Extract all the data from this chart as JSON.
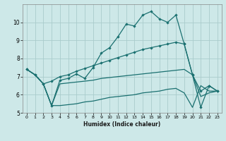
{
  "xlabel": "Humidex (Indice chaleur)",
  "background_color": "#cde8e8",
  "grid_color": "#aacccc",
  "line_color": "#1a7070",
  "xlim": [
    -0.5,
    23.5
  ],
  "ylim": [
    5,
    11
  ],
  "xticks": [
    0,
    1,
    2,
    3,
    4,
    5,
    6,
    7,
    8,
    9,
    10,
    11,
    12,
    13,
    14,
    15,
    16,
    17,
    18,
    19,
    20,
    21,
    22,
    23
  ],
  "yticks": [
    5,
    6,
    7,
    8,
    9,
    10
  ],
  "line1_x": [
    0,
    1,
    2,
    3,
    4,
    5,
    6,
    7,
    8,
    9,
    10,
    11,
    12,
    13,
    14,
    15,
    16,
    17,
    18,
    19,
    20,
    21,
    22,
    23
  ],
  "line1_y": [
    7.4,
    7.1,
    6.6,
    5.4,
    6.8,
    6.9,
    7.15,
    6.9,
    7.5,
    8.3,
    8.6,
    9.2,
    9.9,
    9.8,
    10.4,
    10.6,
    10.2,
    10.0,
    10.4,
    8.8,
    7.1,
    5.3,
    6.5,
    6.2
  ],
  "line2_x": [
    0,
    1,
    2,
    3,
    4,
    5,
    6,
    7,
    8,
    9,
    10,
    11,
    12,
    13,
    14,
    15,
    16,
    17,
    18,
    19,
    20,
    21,
    22,
    23
  ],
  "line2_y": [
    7.4,
    7.1,
    6.6,
    6.75,
    7.0,
    7.1,
    7.3,
    7.45,
    7.6,
    7.75,
    7.9,
    8.05,
    8.2,
    8.35,
    8.5,
    8.6,
    8.7,
    8.8,
    8.9,
    8.8,
    7.1,
    6.2,
    6.5,
    6.2
  ],
  "line3_x": [
    0,
    1,
    2,
    3,
    4,
    5,
    6,
    7,
    8,
    9,
    10,
    11,
    12,
    13,
    14,
    15,
    16,
    17,
    18,
    19,
    20,
    21,
    22,
    23
  ],
  "line3_y": [
    7.4,
    7.1,
    6.6,
    5.4,
    6.6,
    6.65,
    6.7,
    6.75,
    6.8,
    6.9,
    6.95,
    7.0,
    7.05,
    7.1,
    7.15,
    7.2,
    7.25,
    7.3,
    7.35,
    7.4,
    7.1,
    5.9,
    6.1,
    6.2
  ],
  "line4_x": [
    0,
    1,
    2,
    3,
    4,
    5,
    6,
    7,
    8,
    9,
    10,
    11,
    12,
    13,
    14,
    15,
    16,
    17,
    18,
    19,
    20,
    21,
    22,
    23
  ],
  "line4_y": [
    7.4,
    7.1,
    6.6,
    5.4,
    5.4,
    5.45,
    5.5,
    5.6,
    5.65,
    5.75,
    5.85,
    5.9,
    5.95,
    6.0,
    6.1,
    6.15,
    6.2,
    6.3,
    6.35,
    6.1,
    5.3,
    6.5,
    6.2,
    6.2
  ]
}
